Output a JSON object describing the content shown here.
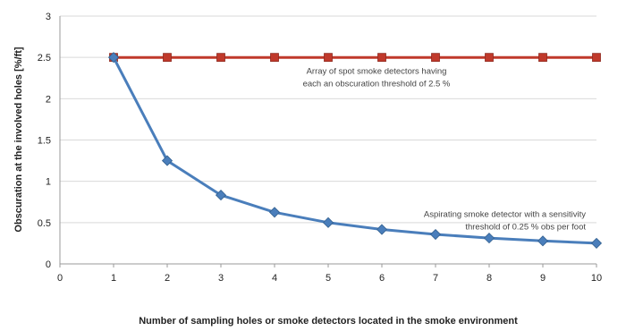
{
  "chart_data": {
    "type": "line",
    "xlabel": "Number of sampling holes or smoke detectors located in the smoke environment",
    "ylabel": "Obscuration at the involved holes [%/ft]",
    "xlim": [
      0,
      10
    ],
    "ylim": [
      0,
      3
    ],
    "x_ticks": [
      "0",
      "1",
      "2",
      "3",
      "4",
      "5",
      "6",
      "7",
      "8",
      "9",
      "10"
    ],
    "y_ticks": [
      "0",
      "0.5",
      "1",
      "1.5",
      "2",
      "2.5",
      "3"
    ],
    "grid": "horizontal",
    "legend": "none",
    "series": [
      {
        "color": "#c0392b",
        "marker": "square",
        "x": [
          1,
          2,
          3,
          4,
          5,
          6,
          7,
          8,
          9,
          10
        ],
        "y": [
          2.5,
          2.5,
          2.5,
          2.5,
          2.5,
          2.5,
          2.5,
          2.5,
          2.5,
          2.5
        ]
      },
      {
        "color": "#4a7ebb",
        "marker": "diamond",
        "x": [
          1,
          2,
          3,
          4,
          5,
          6,
          7,
          8,
          9,
          10
        ],
        "y": [
          2.5,
          1.25,
          0.833,
          0.625,
          0.5,
          0.417,
          0.357,
          0.313,
          0.278,
          0.25
        ]
      }
    ],
    "annotations": [
      {
        "lines": [
          "Array of spot smoke detectors  having",
          "each an obscuration threshold of 2.5 %"
        ],
        "x": 5.9,
        "y": 2.3
      },
      {
        "lines": [
          "Aspirating smoke detector with a sensitivity",
          "threshold of 0.25 % obs per foot"
        ],
        "x": 9.8,
        "y": 0.57
      }
    ]
  }
}
